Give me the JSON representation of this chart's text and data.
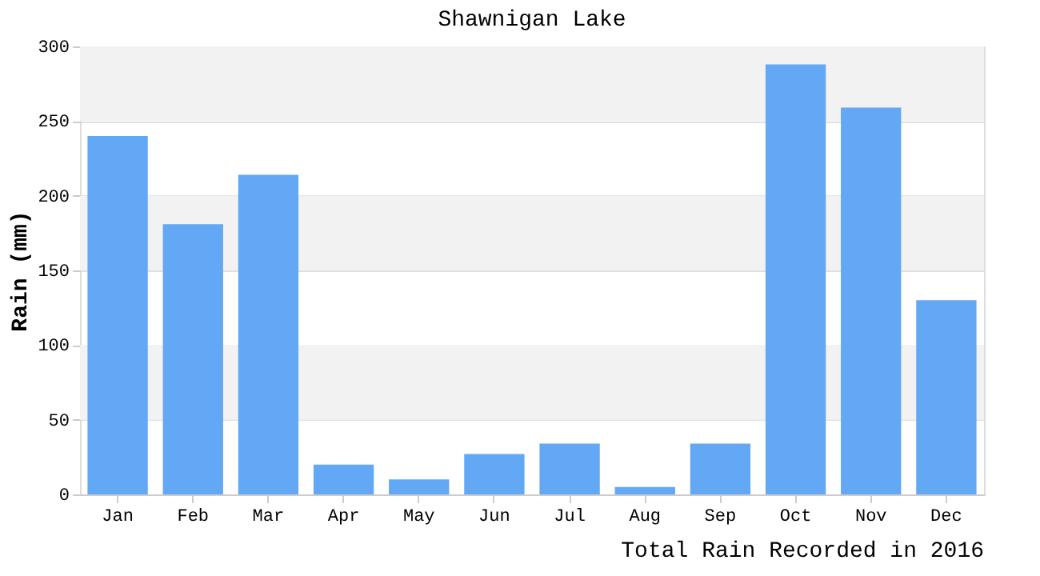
{
  "chart_data": {
    "type": "bar",
    "title": "Shawnigan Lake",
    "ylabel": "Rain (mm)",
    "categories": [
      "Jan",
      "Feb",
      "Mar",
      "Apr",
      "May",
      "Jun",
      "Jul",
      "Aug",
      "Sep",
      "Oct",
      "Nov",
      "Dec"
    ],
    "values": [
      240,
      181,
      214,
      20,
      10,
      27,
      34,
      5,
      34,
      288,
      259,
      130
    ],
    "color": "#62a8f5",
    "ylim": [
      0,
      300
    ],
    "yticks": [
      0,
      50,
      100,
      150,
      200,
      250,
      300
    ],
    "grid": "y",
    "bands": [
      {
        "axis": "y",
        "from": 50,
        "to": 100,
        "color": "#f2f2f2"
      },
      {
        "axis": "y",
        "from": 150,
        "to": 200,
        "color": "#f2f2f2"
      },
      {
        "axis": "y",
        "from": 250,
        "to": 300,
        "color": "#f2f2f2"
      }
    ],
    "annotations": [
      "Total Rain Recorded in 2016"
    ]
  }
}
